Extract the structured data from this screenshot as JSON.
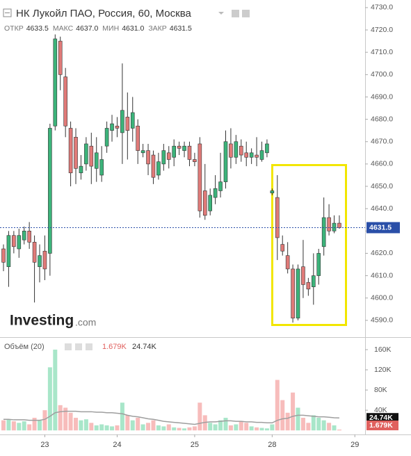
{
  "chart_data": [
    {
      "type": "candlestick",
      "title": "НК Лукойл ПАО, Россия, 60, Москва",
      "header": [
        {
          "label": "ОТКР",
          "value": "4633.5"
        },
        {
          "label": "МАКС",
          "value": "4637.0"
        },
        {
          "label": "МИН",
          "value": "4631.0"
        },
        {
          "label": "ЗАКР",
          "value": "4631.5"
        }
      ],
      "watermark": {
        "brand": "Investing",
        "suffix": ".com"
      },
      "last_label": "4631.5",
      "up_color": "#3cb37a",
      "down_color": "#e07a78",
      "categories": [
        null,
        null,
        null,
        null,
        null,
        null,
        null,
        null,
        "23",
        null,
        null,
        null,
        null,
        null,
        null,
        null,
        null,
        null,
        null,
        null,
        null,
        null,
        "24",
        null,
        null,
        null,
        null,
        null,
        null,
        null,
        null,
        null,
        null,
        null,
        null,
        null,
        null,
        "25",
        null,
        null,
        null,
        null,
        null,
        null,
        null,
        null,
        null,
        null,
        null,
        null,
        null,
        null,
        "28",
        null,
        null,
        null,
        null,
        null,
        null,
        null,
        null,
        null,
        null,
        null,
        null,
        null,
        null,
        null,
        "29"
      ],
      "open": [
        4622,
        4614,
        4628,
        4622,
        4626,
        4630,
        4625,
        4614,
        4621,
        4620,
        4677,
        4715,
        4699,
        4676,
        4672,
        4656,
        4660,
        4668,
        4658,
        4655,
        4668,
        4675,
        4677,
        4674,
        4681,
        4676,
        4677,
        4665,
        4666,
        4664,
        4655,
        4660,
        4665,
        4663,
        4668,
        4666,
        4668,
        4662,
        4669,
        4648,
        4639,
        4645,
        4648,
        4652,
        4669,
        4663,
        4668,
        4665,
        4663,
        4664,
        4662,
        4665,
        4647,
        4645,
        4624,
        4619,
        4613,
        4591,
        4614,
        4607,
        4605,
        4610,
        4623,
        4636,
        4630,
        4633.5,
        null,
        null,
        null
      ],
      "high": [
        4624,
        4630,
        4630,
        4631,
        4632,
        4634,
        4628,
        4624,
        4628,
        4678,
        4718,
        4717,
        4703,
        4679,
        4676,
        4664,
        4672,
        4674,
        4672,
        4668,
        4679,
        4682,
        4681,
        4705,
        4692,
        4690,
        4680,
        4669,
        4669,
        4666,
        4665,
        4669,
        4668,
        4671,
        4670,
        4670,
        4670,
        4665,
        4672,
        4660,
        4649,
        4655,
        4665,
        4675,
        4676,
        4673,
        4671,
        4670,
        4667,
        4672,
        4670,
        4671,
        4649,
        4655,
        4628,
        4625,
        4615,
        4615,
        4626,
        4609,
        4620,
        4622,
        4645,
        4642,
        4637,
        4637,
        null,
        null,
        null
      ],
      "low": [
        4612,
        4605,
        4620,
        4618,
        4624,
        4622,
        4598,
        4607,
        4608,
        4610,
        4675,
        4693,
        4672,
        4650,
        4651,
        4653,
        4657,
        4651,
        4652,
        4652,
        4665,
        4670,
        4672,
        4660,
        4662,
        4670,
        4660,
        4663,
        4655,
        4651,
        4653,
        4657,
        4658,
        4659,
        4664,
        4663,
        4659,
        4659,
        4636,
        4635,
        4637,
        4642,
        4645,
        4649,
        4658,
        4660,
        4661,
        4659,
        4660,
        4659,
        4661,
        4663,
        4646,
        4617,
        4619,
        4611,
        4589,
        4590,
        4600,
        4601,
        4597,
        4606,
        4619,
        4628,
        4629,
        4631,
        null,
        null,
        null
      ],
      "close": [
        4616,
        4628,
        4623,
        4628,
        4630,
        4625,
        4616,
        4619,
        4613,
        4676,
        4716,
        4700,
        4677,
        4656,
        4658,
        4659,
        4669,
        4659,
        4665,
        4662,
        4676,
        4678,
        4676,
        4684,
        4675,
        4683,
        4666,
        4666,
        4660,
        4654,
        4661,
        4666,
        4662,
        4668,
        4667,
        4668,
        4662,
        4661,
        4639,
        4637,
        4646,
        4649,
        4652,
        4670,
        4663,
        4670,
        4664,
        4663,
        4665,
        4663,
        4666,
        4669,
        4648,
        4627,
        4621,
        4613,
        4591,
        4613,
        4606,
        4604,
        4610,
        4620,
        4636,
        4630,
        4633.5,
        4631.5,
        null,
        null,
        null
      ],
      "ylim": [
        4582.8,
        4733.4
      ],
      "yticks": [
        {
          "value": 4590,
          "label": "4590.0"
        },
        {
          "value": 4600,
          "label": "4600.0"
        },
        {
          "value": 4610,
          "label": "4610.0"
        },
        {
          "value": 4620,
          "label": "4620.0"
        },
        {
          "value": 4630,
          "label": "4630.0"
        },
        {
          "value": 4640,
          "label": "4640.0"
        },
        {
          "value": 4650,
          "label": "4650.0"
        },
        {
          "value": 4660,
          "label": "4660.0"
        },
        {
          "value": 4670,
          "label": "4670.0"
        },
        {
          "value": 4680,
          "label": "4680.0"
        },
        {
          "value": 4690,
          "label": "4690.0"
        },
        {
          "value": 4700,
          "label": "4700.0"
        },
        {
          "value": 4710,
          "label": "4710.0"
        },
        {
          "value": 4720,
          "label": "4720.0"
        },
        {
          "value": 4730,
          "label": "4730.0"
        }
      ]
    },
    {
      "type": "volume",
      "title": "Объём (20)",
      "last_value_label": "1.679K",
      "last_average_label": "24.74K",
      "up_color": "#a8e6c9",
      "down_color": "#f7bcbb",
      "average_color": "#9e9e9e",
      "values": [
        20,
        22,
        18,
        15,
        18,
        12,
        25,
        20,
        40,
        125,
        160,
        50,
        45,
        35,
        25,
        20,
        22,
        15,
        10,
        12,
        10,
        8,
        10,
        55,
        30,
        20,
        25,
        12,
        15,
        20,
        10,
        8,
        12,
        6,
        5,
        4,
        6,
        8,
        55,
        30,
        15,
        12,
        20,
        25,
        10,
        12,
        18,
        15,
        8,
        6,
        5,
        4,
        12,
        100,
        60,
        35,
        75,
        45,
        25,
        15,
        30,
        25,
        20,
        15,
        10,
        1.679,
        null,
        null,
        null
      ],
      "average": [
        22,
        22,
        21,
        21,
        21,
        20,
        20,
        20,
        22,
        28,
        35,
        37,
        38,
        38,
        38,
        37,
        37,
        37,
        36,
        36,
        35,
        35,
        34,
        33,
        30,
        28,
        27,
        25,
        23,
        22,
        20,
        18,
        17,
        16,
        15,
        14,
        13,
        12,
        14,
        16,
        17,
        17,
        18,
        19,
        19,
        18,
        18,
        17,
        17,
        16,
        16,
        15,
        15,
        20,
        23,
        24,
        28,
        30,
        30,
        29,
        28,
        27,
        27,
        26,
        25,
        24.74,
        null,
        null,
        null
      ],
      "ylim": [
        -8,
        182
      ],
      "yticks": [
        {
          "value": 40,
          "label": "40K"
        },
        {
          "value": 80,
          "label": "80K"
        },
        {
          "value": 120,
          "label": "120K"
        },
        {
          "value": 160,
          "label": "160K"
        }
      ]
    }
  ]
}
